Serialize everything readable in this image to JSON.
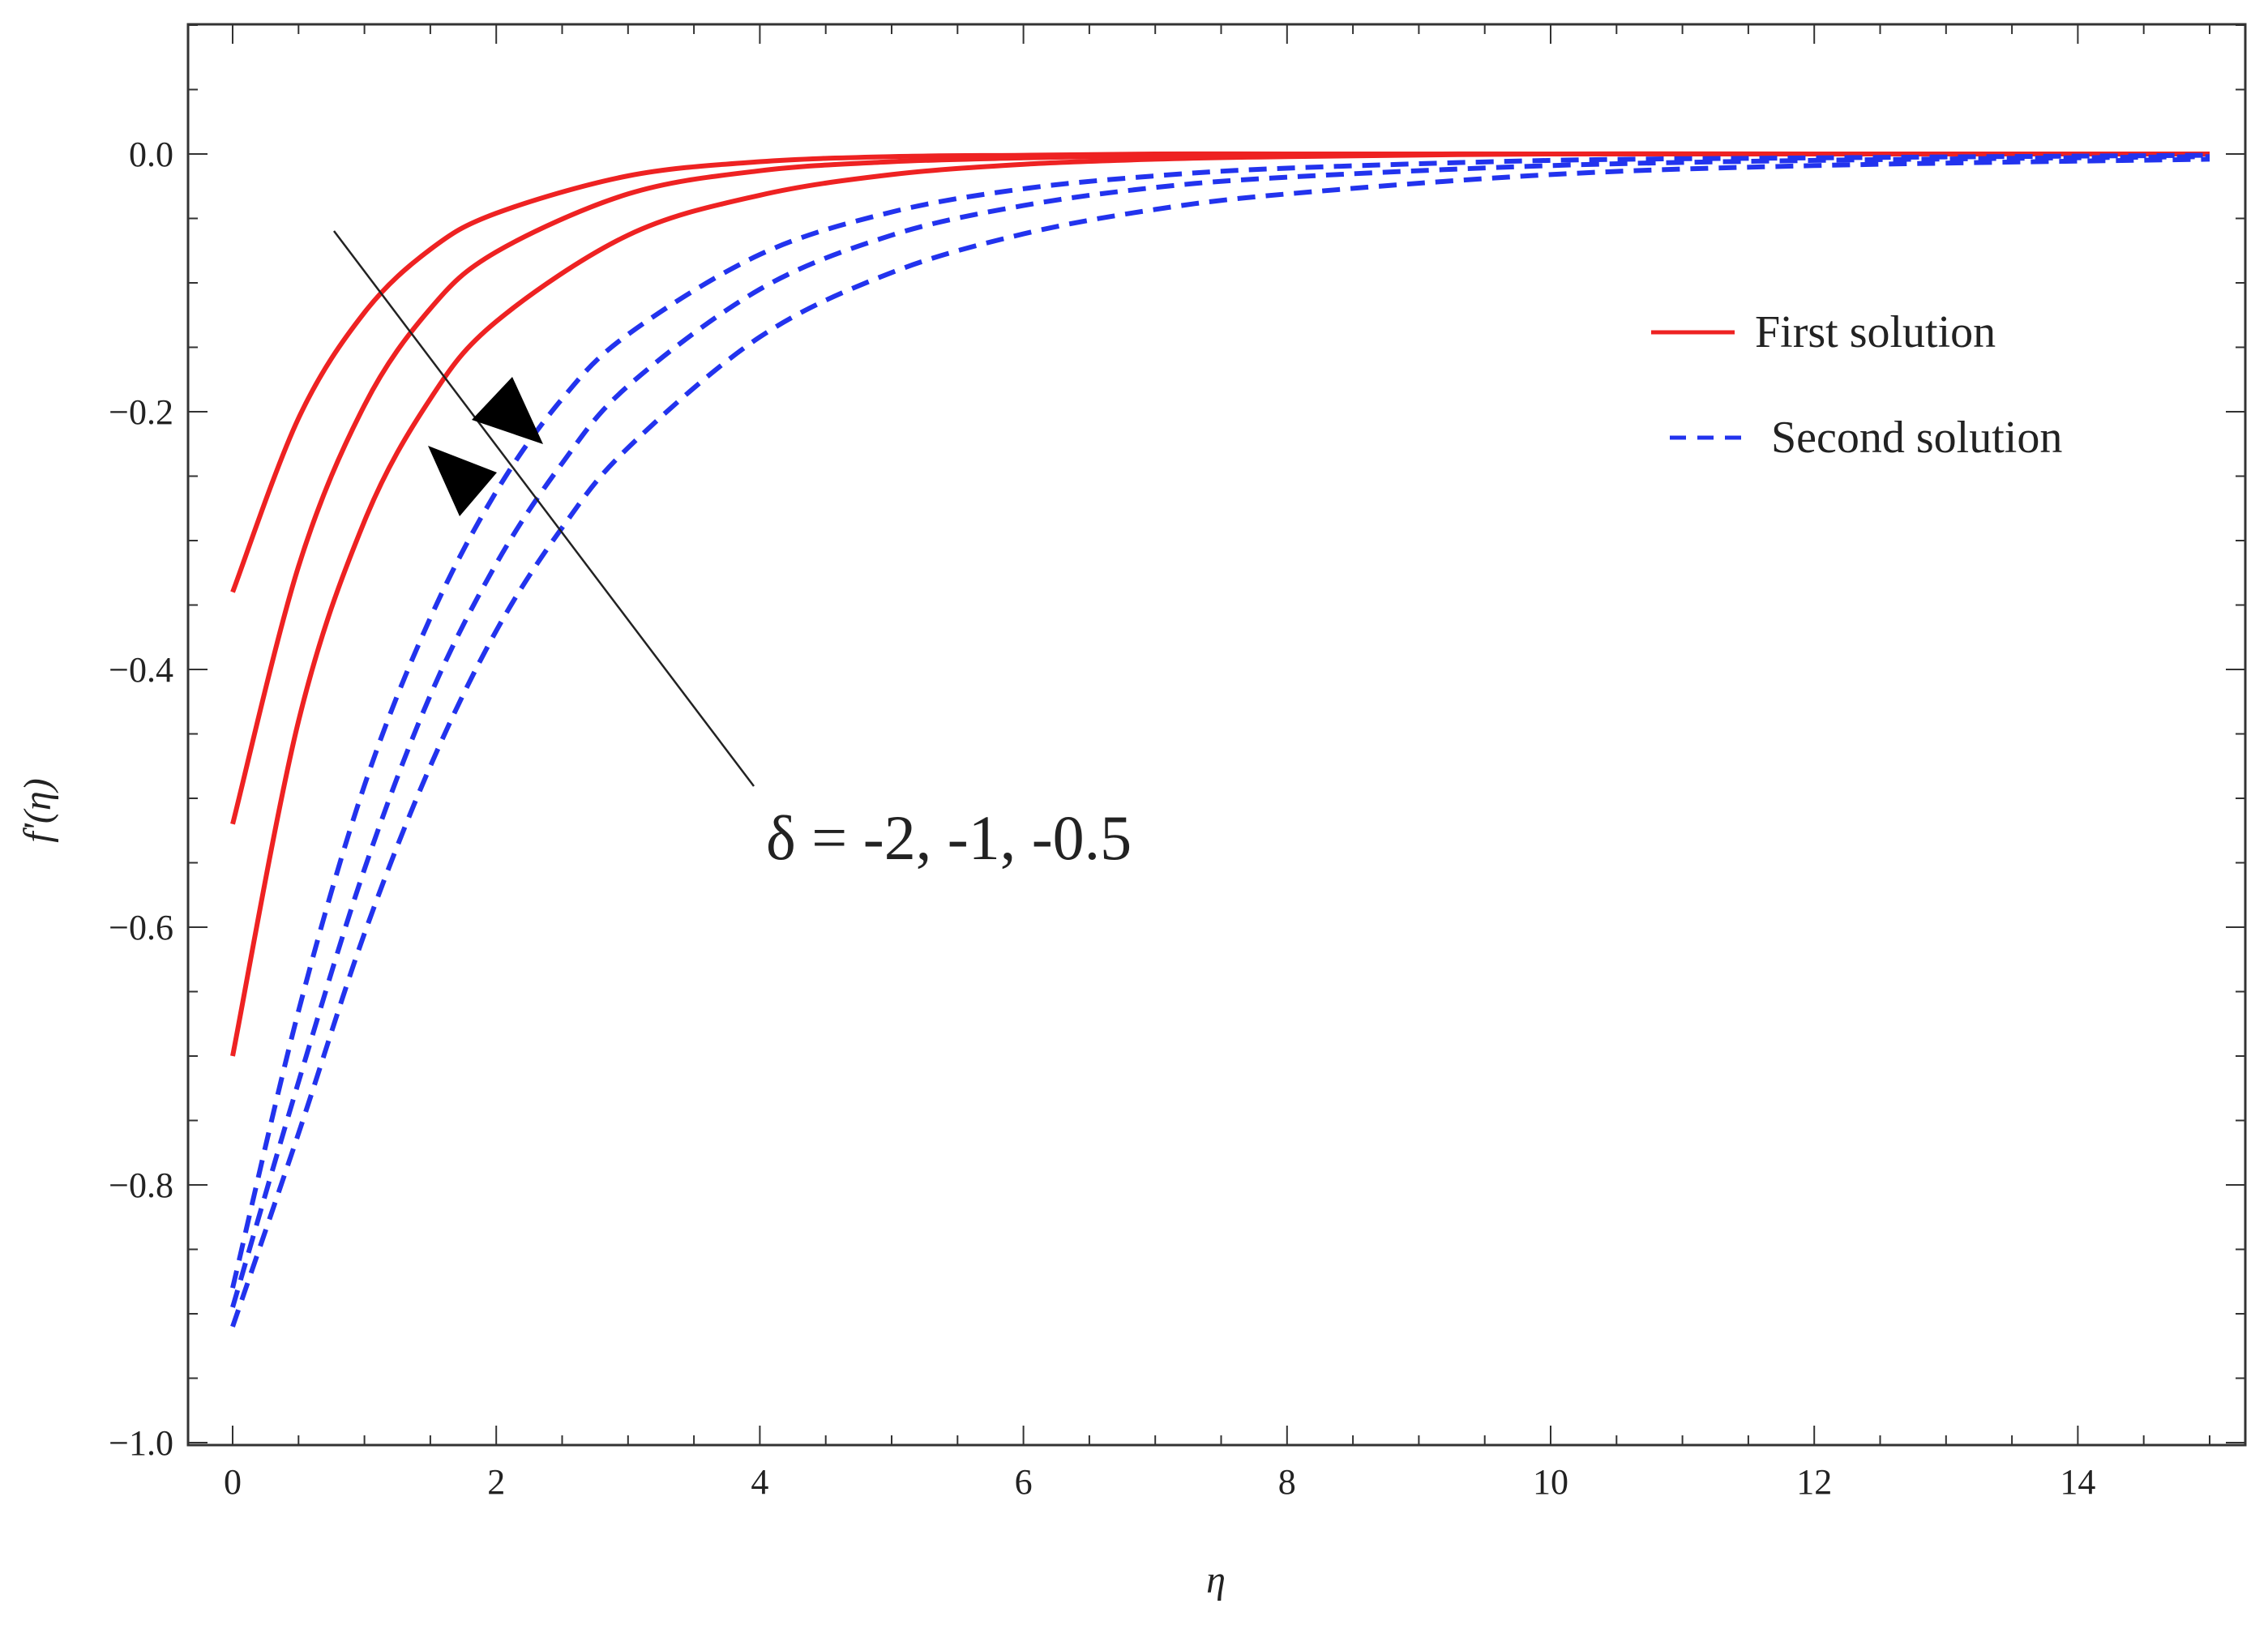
{
  "chart_data": {
    "type": "line",
    "title": "",
    "xlabel": "η",
    "ylabel": "f'(η)",
    "xlim": [
      0,
      15
    ],
    "ylim": [
      -1.0,
      0.1
    ],
    "x_ticks": [
      0,
      2,
      4,
      6,
      8,
      10,
      12,
      14
    ],
    "x_tick_labels": [
      "0",
      "2",
      "4",
      "6",
      "8",
      "10",
      "12",
      "14"
    ],
    "y_ticks": [
      0.0,
      -0.2,
      -0.4,
      -0.6,
      -0.8,
      -1.0
    ],
    "y_tick_labels": [
      "0.0",
      "−0.2",
      "−0.4",
      "−0.6",
      "−0.8",
      "−1.0"
    ],
    "grid": false,
    "legend_position": "top-right",
    "legend": [
      {
        "label": "First solution",
        "color": "#ee2222",
        "style": "solid"
      },
      {
        "label": "Second solution",
        "color": "#2233ee",
        "style": "dashed"
      }
    ],
    "annotation": {
      "text": "δ = -2, -1, -0.5"
    },
    "series": [
      {
        "solution": "first",
        "color": "#ee2222",
        "style": "solid",
        "x": [
          0,
          0.5,
          1,
          1.5,
          2,
          3,
          4,
          5,
          6,
          7,
          8,
          10,
          12,
          15
        ],
        "y": [
          -0.34,
          -0.205,
          -0.123,
          -0.074,
          -0.046,
          -0.017,
          -0.006,
          -0.002,
          -0.001,
          0,
          0,
          0,
          0,
          0
        ]
      },
      {
        "solution": "first",
        "color": "#ee2222",
        "style": "solid",
        "x": [
          0,
          0.5,
          1,
          1.5,
          2,
          3,
          4,
          5,
          6,
          7,
          8,
          10,
          12,
          15
        ],
        "y": [
          -0.52,
          -0.32,
          -0.195,
          -0.12,
          -0.076,
          -0.031,
          -0.013,
          -0.006,
          -0.003,
          -0.001,
          0,
          0,
          0,
          0
        ]
      },
      {
        "solution": "first",
        "color": "#ee2222",
        "style": "solid",
        "x": [
          0,
          0.5,
          1,
          1.5,
          2,
          3,
          4,
          5,
          6,
          7,
          8,
          10,
          12,
          15
        ],
        "y": [
          -0.7,
          -0.44,
          -0.285,
          -0.19,
          -0.13,
          -0.063,
          -0.032,
          -0.016,
          -0.008,
          -0.004,
          -0.002,
          0,
          0,
          0
        ]
      },
      {
        "solution": "second",
        "color": "#2233ee",
        "style": "dashed",
        "x": [
          0,
          0.5,
          1,
          1.5,
          2,
          2.5,
          3,
          4,
          5,
          6,
          7,
          8,
          10,
          12,
          15
        ],
        "y": [
          -0.88,
          -0.665,
          -0.49,
          -0.36,
          -0.262,
          -0.19,
          -0.14,
          -0.078,
          -0.045,
          -0.027,
          -0.017,
          -0.011,
          -0.005,
          -0.003,
          -0.001
        ]
      },
      {
        "solution": "second",
        "color": "#2233ee",
        "style": "dashed",
        "x": [
          0,
          0.5,
          1,
          1.5,
          2,
          2.5,
          3,
          4,
          5,
          6,
          7,
          8,
          10,
          12,
          15
        ],
        "y": [
          -0.895,
          -0.72,
          -0.555,
          -0.42,
          -0.318,
          -0.24,
          -0.18,
          -0.105,
          -0.063,
          -0.04,
          -0.026,
          -0.018,
          -0.009,
          -0.005,
          -0.002
        ]
      },
      {
        "solution": "second",
        "color": "#2233ee",
        "style": "dashed",
        "x": [
          0,
          0.5,
          1,
          1.5,
          2,
          2.5,
          3,
          4,
          5,
          6,
          7,
          8,
          10,
          12,
          15
        ],
        "y": [
          -0.91,
          -0.76,
          -0.605,
          -0.475,
          -0.37,
          -0.29,
          -0.228,
          -0.142,
          -0.092,
          -0.062,
          -0.043,
          -0.031,
          -0.016,
          -0.009,
          -0.004
        ]
      }
    ]
  }
}
